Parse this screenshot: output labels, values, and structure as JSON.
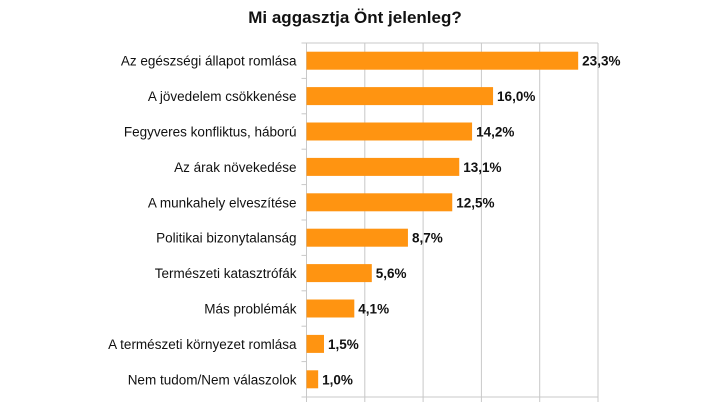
{
  "chart_data": {
    "type": "bar",
    "orientation": "horizontal",
    "title": "Mi aggasztja Önt jelenleg?",
    "xlabel": "",
    "ylabel": "",
    "categories": [
      "Az egészségi állapot romlása",
      "A jövedelem csökkenése",
      "Fegyveres konfliktus, háború",
      "Az árak növekedése",
      "A munkahely elveszítése",
      "Politikai bizonytalanság",
      "Természeti katasztrófák",
      "Más problémák",
      "A természeti környezet romlása",
      "Nem tudom/Nem válaszolok"
    ],
    "values": [
      23.3,
      16.0,
      14.2,
      13.1,
      12.5,
      8.7,
      5.6,
      4.1,
      1.5,
      1.0
    ],
    "value_labels": [
      "23,3%",
      "16,0%",
      "14,2%",
      "13,1%",
      "12,5%",
      "8,7%",
      "5,6%",
      "4,1%",
      "1,5%",
      "1,0%"
    ],
    "xlim": [
      0,
      25
    ],
    "x_grid_step": 5,
    "x_tick_labels_shown": false,
    "grid": true,
    "legend": "none",
    "bar_color": "#FF9411",
    "grid_color": "#C8C8C8"
  }
}
